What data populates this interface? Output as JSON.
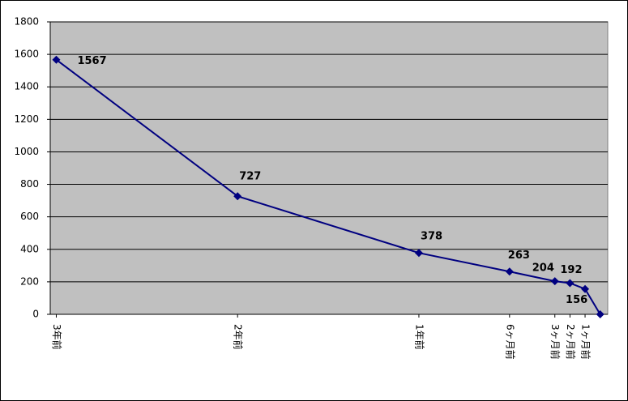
{
  "chart_data": {
    "type": "line",
    "x": [
      -36,
      -24,
      -12,
      -6,
      -3,
      -2,
      -1,
      0
    ],
    "xlim": [
      -36.4,
      0.5
    ],
    "xticks": [
      {
        "value": -36,
        "label": "3年前"
      },
      {
        "value": -24,
        "label": "2年前"
      },
      {
        "value": -12,
        "label": "1年前"
      },
      {
        "value": -6,
        "label": "6ヶ月前"
      },
      {
        "value": -3,
        "label": "3ヶ月前"
      },
      {
        "value": -2,
        "label": "2ヶ月前"
      },
      {
        "value": -1,
        "label": "1ヶ月前"
      }
    ],
    "series": [
      {
        "color": "#000080",
        "values": [
          1567,
          727,
          378,
          263,
          204,
          192,
          156,
          0
        ],
        "value_labels": [
          "1567",
          "727",
          "378",
          "263",
          "204",
          "192",
          "156",
          null
        ]
      }
    ],
    "ylim": [
      0,
      1800
    ],
    "yticks": [
      0,
      200,
      400,
      600,
      800,
      1000,
      1200,
      1400,
      1600,
      1800
    ],
    "grid": true,
    "background": "#c0c0c0"
  }
}
